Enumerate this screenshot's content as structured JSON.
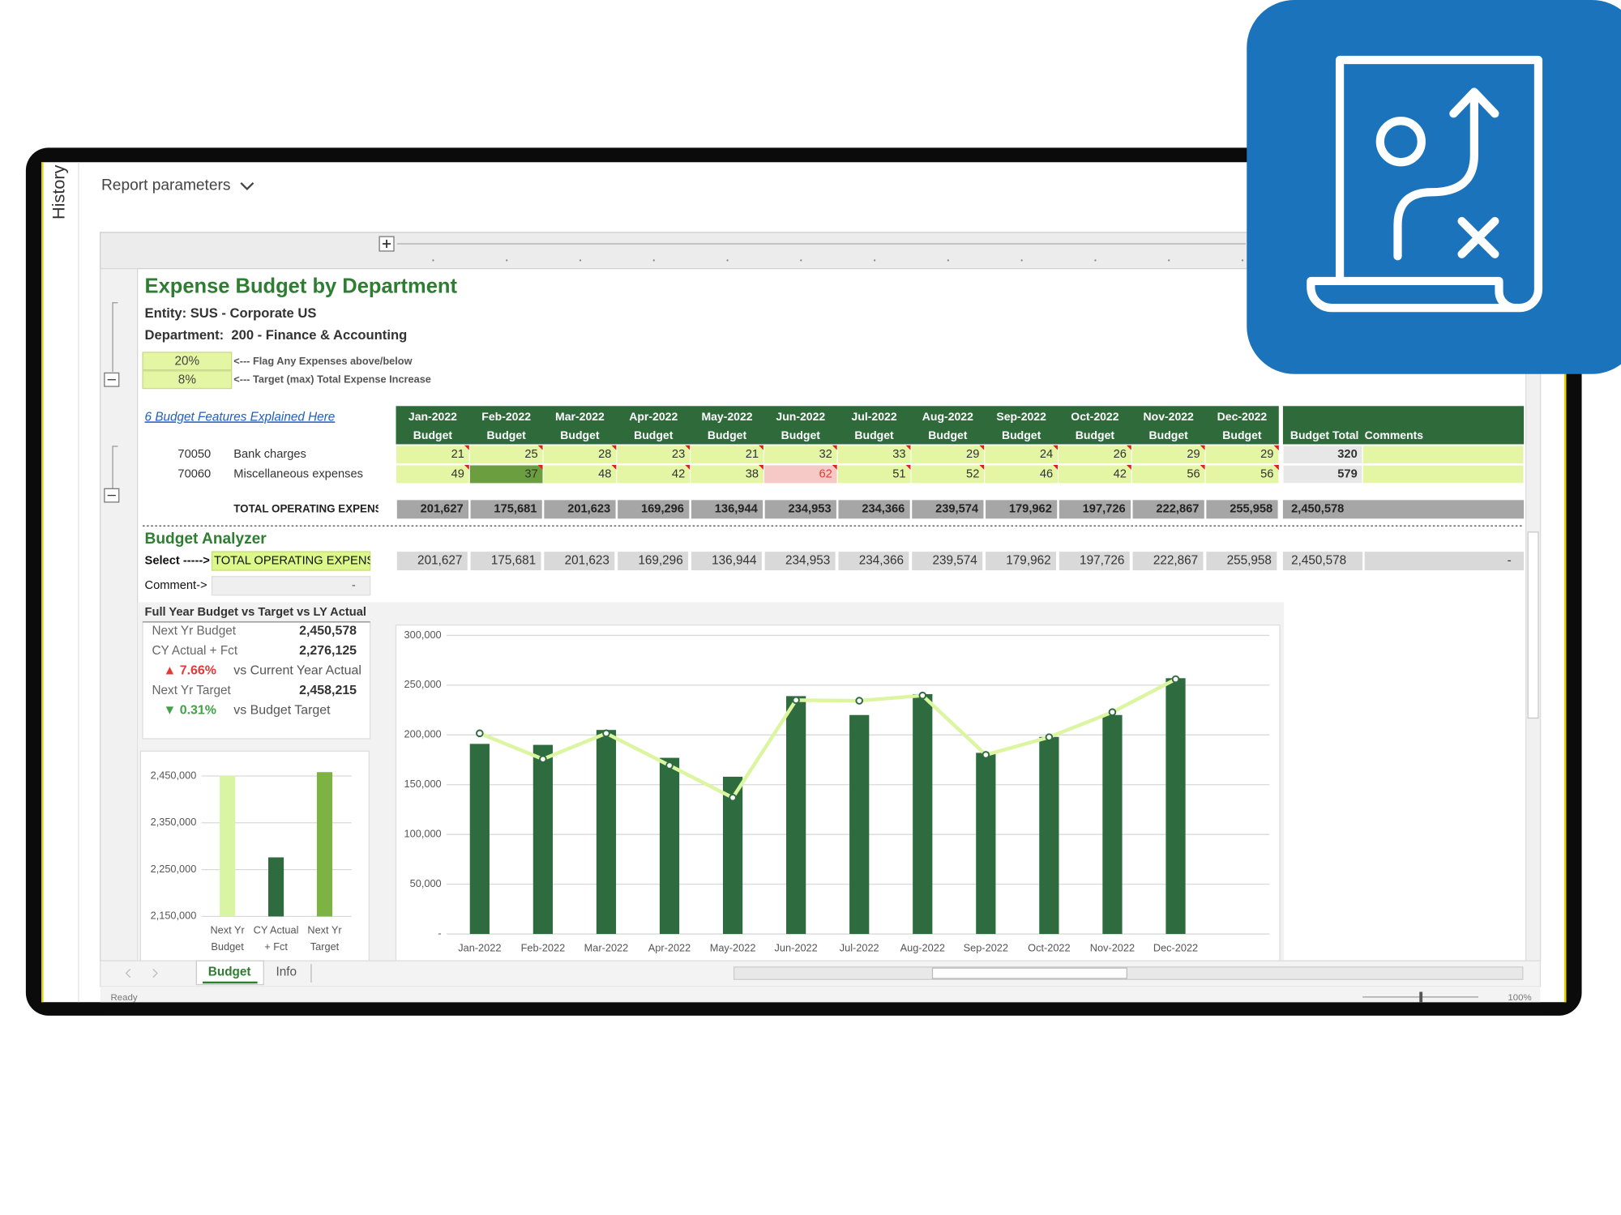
{
  "window": {
    "sidebar_label": "History",
    "report_parameters": "Report parameters",
    "tabs": [
      "Budget",
      "Info"
    ],
    "status": "Ready",
    "zoom": "100%"
  },
  "sheet": {
    "title": "Expense Budget by Department",
    "entity": "Entity: SUS - Corporate US",
    "department": "Department:  200 - Finance & Accounting",
    "parameters": [
      {
        "value": "20%",
        "note": "<--- Flag Any Expenses above/below"
      },
      {
        "value": "8%",
        "note": "<--- Target (max) Total Expense Increase"
      }
    ],
    "features_link": "6 Budget Features Explained Here",
    "months": [
      "Jan-2022",
      "Feb-2022",
      "Mar-2022",
      "Apr-2022",
      "May-2022",
      "Jun-2022",
      "Jul-2022",
      "Aug-2022",
      "Sep-2022",
      "Oct-2022",
      "Nov-2022",
      "Dec-2022"
    ],
    "column_label": "Budget",
    "total_header": "Budget Total",
    "comments_header": "Comments",
    "rows": [
      {
        "account": "70050",
        "name": "Bank charges",
        "values": [
          21,
          25,
          28,
          23,
          21,
          32,
          33,
          29,
          24,
          26,
          29,
          29
        ],
        "total": 320
      },
      {
        "account": "70060",
        "name": "Miscellaneous expenses",
        "values": [
          49,
          37,
          48,
          42,
          38,
          62,
          51,
          52,
          46,
          42,
          56,
          56
        ],
        "total": 579
      }
    ],
    "total_row": {
      "label": "TOTAL OPERATING EXPENSE",
      "values": [
        "201,627",
        "175,681",
        "201,623",
        "169,296",
        "136,944",
        "234,953",
        "234,366",
        "239,574",
        "179,962",
        "197,726",
        "222,867",
        "255,958"
      ],
      "total": "2,450,578"
    }
  },
  "analyzer": {
    "title": "Budget Analyzer",
    "select_label": "Select ----->",
    "selection": "TOTAL OPERATING EXPENSE",
    "values": [
      "201,627",
      "175,681",
      "201,623",
      "169,296",
      "136,944",
      "234,953",
      "234,366",
      "239,574",
      "179,962",
      "197,726",
      "222,867",
      "255,958"
    ],
    "total": "2,450,578",
    "total_comment": "-",
    "comment_label": "Comment->",
    "comment": "-"
  },
  "summary": {
    "title": "Full Year Budget vs Target vs LY Actual",
    "rows": [
      {
        "label": "Next Yr Budget",
        "value": "2,450,578"
      },
      {
        "label": "CY Actual + Fct",
        "value": "2,276,125"
      },
      {
        "change": "▲ 7.66%",
        "note": "vs Current Year Actual"
      },
      {
        "label": "Next Yr Target",
        "value": "2,458,215"
      },
      {
        "change": "▼ 0.31%",
        "note": "vs Budget Target"
      }
    ]
  },
  "chart_data": [
    {
      "type": "bar",
      "categories": [
        [
          "Next Yr",
          "Budget"
        ],
        [
          "CY Actual",
          "+ Fct"
        ],
        [
          "Next Yr",
          "Target"
        ]
      ],
      "values": [
        2450578,
        2276125,
        2458215
      ],
      "colors": [
        "#d9f5a3",
        "#2e6b3f",
        "#7cb342"
      ],
      "ylim": [
        2150000,
        2470000
      ],
      "yticks": [
        {
          "value": 2150000,
          "label": "2,150,000"
        },
        {
          "value": 2250000,
          "label": "2,250,000"
        },
        {
          "value": 2350000,
          "label": "2,350,000"
        },
        {
          "value": 2450000,
          "label": "2,450,000"
        }
      ],
      "grid": true
    },
    {
      "type": "combo",
      "categories": [
        "Jan-2022",
        "Feb-2022",
        "Mar-2022",
        "Apr-2022",
        "May-2022",
        "Jun-2022",
        "Jul-2022",
        "Aug-2022",
        "Sep-2022",
        "Oct-2022",
        "Nov-2022",
        "Dec-2022"
      ],
      "series": [
        {
          "kind": "bar",
          "color": "#2e6b3f",
          "values": [
            191000,
            190000,
            205000,
            177000,
            158000,
            239000,
            220000,
            241000,
            182000,
            198000,
            220000,
            257000
          ]
        },
        {
          "kind": "line",
          "color": "#dcf5a0",
          "values": [
            201627,
            175681,
            201623,
            169296,
            136944,
            234953,
            234366,
            239574,
            179962,
            197726,
            222867,
            255958
          ]
        }
      ],
      "ylim": [
        0,
        300000
      ],
      "yticks": [
        {
          "value": 0,
          "label": "-"
        },
        {
          "value": 50000,
          "label": "50,000"
        },
        {
          "value": 100000,
          "label": "100,000"
        },
        {
          "value": 150000,
          "label": "150,000"
        },
        {
          "value": 200000,
          "label": "200,000"
        },
        {
          "value": 250000,
          "label": "250,000"
        },
        {
          "value": 300000,
          "label": "300,000"
        }
      ],
      "grid": true
    }
  ]
}
